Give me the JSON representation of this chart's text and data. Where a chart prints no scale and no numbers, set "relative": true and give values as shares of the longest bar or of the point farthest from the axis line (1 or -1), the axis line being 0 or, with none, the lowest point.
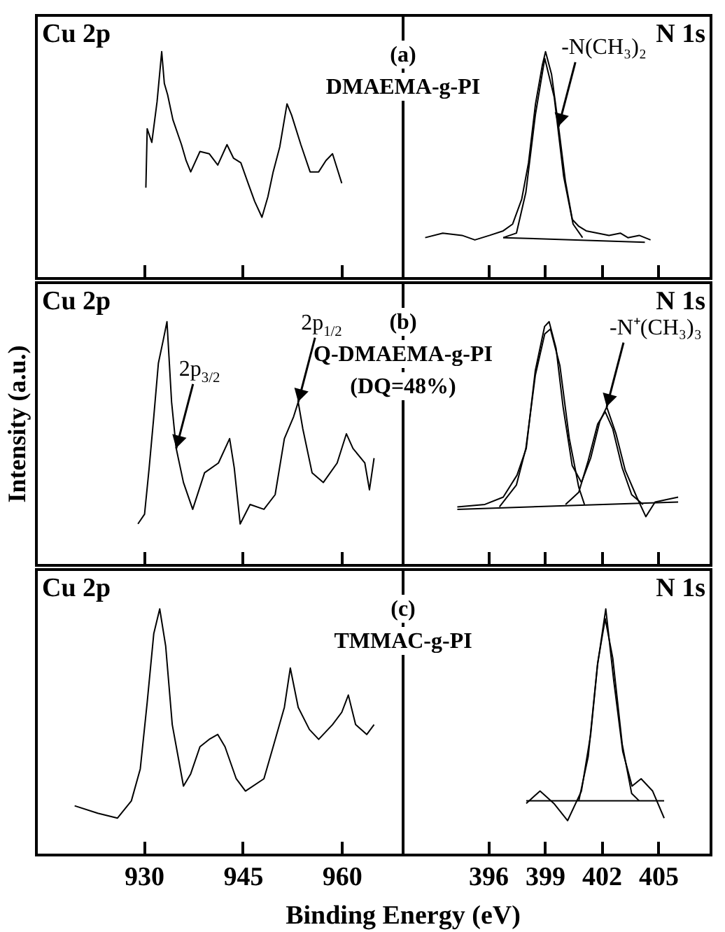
{
  "chart_data": [
    {
      "type": "line",
      "title": "Cu 2p",
      "relative": true,
      "xlim": [
        913.7,
        969.3
      ],
      "xticks": [
        930,
        945,
        960
      ],
      "tick_labels": false,
      "series": [
        {
          "color": "#000000",
          "x": [
            930.3,
            930.5,
            931.2,
            932.0,
            932.7,
            933.1,
            933.6,
            934.4,
            935.7,
            936.4,
            937.1,
            938.5,
            939.9,
            941.2,
            942.6,
            943.6,
            944.7,
            945.8,
            946.8,
            947.9,
            948.8,
            949.6,
            950.6,
            951.7,
            952.4,
            953.8,
            955.2,
            956.5,
            957.6,
            958.6,
            960.0
          ],
          "values": [
            0.4,
            0.66,
            0.6,
            0.78,
            1.0,
            0.86,
            0.81,
            0.7,
            0.59,
            0.52,
            0.47,
            0.56,
            0.55,
            0.5,
            0.59,
            0.53,
            0.51,
            0.42,
            0.34,
            0.27,
            0.36,
            0.47,
            0.58,
            0.77,
            0.72,
            0.59,
            0.47,
            0.47,
            0.52,
            0.55,
            0.42
          ]
        }
      ]
    },
    {
      "type": "line",
      "title": "N 1s",
      "relative": true,
      "xlim": [
        391.5,
        407.8
      ],
      "xticks": [
        396,
        399,
        402,
        405
      ],
      "tick_labels": false,
      "annotations": [
        "(a)",
        "DMAEMA-g-PI",
        {
          "text": "-N(CH₃)₂",
          "x": 399.73,
          "y": 0.67
        }
      ],
      "series": [
        {
          "color": "#000000",
          "x": [
            392.67,
            393.6,
            394.62,
            395.3,
            396.08,
            396.8,
            397.3,
            397.78,
            398.14,
            398.51,
            398.87,
            399.04,
            399.36,
            399.73,
            400.09,
            400.46,
            400.8,
            401.19,
            401.8,
            402.4,
            403.0,
            403.4,
            404.0,
            404.6
          ],
          "values": [
            0.18,
            0.2,
            0.19,
            0.17,
            0.19,
            0.21,
            0.24,
            0.35,
            0.51,
            0.77,
            0.94,
            1.0,
            0.9,
            0.67,
            0.43,
            0.26,
            0.23,
            0.21,
            0.2,
            0.19,
            0.2,
            0.18,
            0.19,
            0.17
          ]
        },
        {
          "color": "#000000",
          "x": [
            396.8,
            397.5,
            398.0,
            398.5,
            399.0,
            399.5,
            400.0,
            400.5,
            401.0
          ],
          "values": [
            0.18,
            0.2,
            0.38,
            0.72,
            0.97,
            0.8,
            0.45,
            0.24,
            0.18
          ]
        },
        {
          "color": "#000000",
          "x": [
            396.8,
            404.3
          ],
          "values": [
            0.18,
            0.16
          ]
        }
      ]
    },
    {
      "type": "line",
      "title": "Cu 2p",
      "relative": true,
      "ylabel": "Intensity (a.u.)",
      "xlim": [
        913.7,
        969.3
      ],
      "xticks": [
        930,
        945,
        960
      ],
      "tick_labels": false,
      "annotations": [
        {
          "text": "2p$_{3/2}$",
          "x": 934.9,
          "y": 0.48
        },
        {
          "text": "2p$_{1/2}$",
          "x": 953.4,
          "y": 0.67
        }
      ],
      "series": [
        {
          "color": "#000000",
          "x": [
            929.1,
            930.1,
            930.8,
            931.5,
            932.2,
            932.9,
            933.5,
            934.2,
            934.9,
            936.0,
            937.4,
            939.2,
            941.3,
            943.0,
            943.7,
            944.6,
            946.1,
            948.2,
            949.9,
            951.3,
            952.7,
            953.4,
            954.1,
            955.5,
            957.2,
            959.3,
            960.7,
            961.7,
            963.5,
            964.2,
            964.9
          ],
          "values": [
            0.17,
            0.21,
            0.4,
            0.61,
            0.83,
            0.92,
            1.0,
            0.67,
            0.48,
            0.34,
            0.23,
            0.38,
            0.42,
            0.52,
            0.4,
            0.17,
            0.25,
            0.23,
            0.29,
            0.52,
            0.61,
            0.67,
            0.56,
            0.38,
            0.34,
            0.42,
            0.54,
            0.48,
            0.42,
            0.31,
            0.44
          ]
        }
      ]
    },
    {
      "type": "line",
      "title": "N 1s",
      "relative": true,
      "xlim": [
        391.5,
        407.8
      ],
      "xticks": [
        396,
        399,
        402,
        405
      ],
      "tick_labels": false,
      "annotations": [
        "(b)",
        "Q-DMAEMA-g-PI",
        "(DQ=48%)",
        {
          "text": "-N⁺(CH₃)₃",
          "x": 402.28,
          "y": 0.65
        }
      ],
      "series": [
        {
          "color": "#000000",
          "x": [
            394.37,
            395.83,
            396.8,
            397.53,
            398.02,
            398.5,
            398.99,
            399.23,
            399.6,
            399.97,
            400.45,
            400.94,
            401.43,
            401.91,
            402.28,
            402.77,
            403.26,
            403.87,
            404.35,
            404.84,
            406.06
          ],
          "values": [
            0.24,
            0.25,
            0.28,
            0.37,
            0.48,
            0.8,
            0.98,
            1.0,
            0.89,
            0.65,
            0.41,
            0.34,
            0.44,
            0.59,
            0.65,
            0.54,
            0.39,
            0.28,
            0.2,
            0.26,
            0.28
          ]
        },
        {
          "color": "#000000",
          "x": [
            396.6,
            397.5,
            398.0,
            398.5,
            399.0,
            399.3,
            399.8,
            400.3,
            400.8,
            401.1
          ],
          "values": [
            0.24,
            0.33,
            0.48,
            0.78,
            0.95,
            0.97,
            0.82,
            0.52,
            0.32,
            0.25
          ]
        },
        {
          "color": "#000000",
          "x": [
            400.1,
            400.8,
            401.3,
            401.8,
            402.2,
            402.6,
            403.1,
            403.6,
            404.2
          ],
          "values": [
            0.25,
            0.3,
            0.43,
            0.58,
            0.63,
            0.56,
            0.4,
            0.29,
            0.25
          ]
        },
        {
          "color": "#000000",
          "x": [
            394.37,
            406.06
          ],
          "values": [
            0.23,
            0.26
          ]
        }
      ]
    },
    {
      "type": "line",
      "title": "Cu 2p",
      "relative": true,
      "xlabel": "Binding Energy (eV)",
      "xlim": [
        913.7,
        969.3
      ],
      "xticks": [
        930,
        945,
        960
      ],
      "tick_labels": "x",
      "series": [
        {
          "color": "#000000",
          "x": [
            919.5,
            923.0,
            926.0,
            928.1,
            929.45,
            930.5,
            931.5,
            932.4,
            933.3,
            934.3,
            936.0,
            937.1,
            938.5,
            939.9,
            941.2,
            942.3,
            944.0,
            945.4,
            948.2,
            949.6,
            951.3,
            952.2,
            953.4,
            955.1,
            956.5,
            958.6,
            960.0,
            961.0,
            962.1,
            963.8,
            964.9
          ],
          "values": [
            0.2,
            0.17,
            0.15,
            0.22,
            0.35,
            0.62,
            0.9,
            1.0,
            0.85,
            0.53,
            0.28,
            0.33,
            0.44,
            0.47,
            0.49,
            0.44,
            0.31,
            0.26,
            0.31,
            0.44,
            0.6,
            0.76,
            0.6,
            0.51,
            0.47,
            0.53,
            0.58,
            0.65,
            0.53,
            0.49,
            0.53
          ]
        }
      ]
    },
    {
      "type": "line",
      "title": "N 1s",
      "relative": true,
      "xlim": [
        391.5,
        407.8
      ],
      "xticks": [
        396,
        399,
        402,
        405
      ],
      "tick_labels": "x",
      "annotations": [
        "(c)",
        "TMMAC-g-PI"
      ],
      "series": [
        {
          "color": "#000000",
          "x": [
            398.02,
            398.75,
            399.48,
            400.21,
            400.94,
            401.43,
            401.79,
            402.23,
            402.65,
            403.13,
            403.62,
            404.1,
            404.71,
            405.32
          ],
          "values": [
            0.21,
            0.26,
            0.21,
            0.14,
            0.26,
            0.49,
            0.77,
            1.0,
            0.71,
            0.42,
            0.28,
            0.31,
            0.26,
            0.15
          ]
        },
        {
          "color": "#000000",
          "x": [
            400.8,
            401.3,
            401.8,
            402.2,
            402.6,
            403.1,
            403.6,
            404.0
          ],
          "values": [
            0.22,
            0.4,
            0.78,
            0.96,
            0.8,
            0.45,
            0.25,
            0.22
          ]
        },
        {
          "color": "#000000",
          "x": [
            398.02,
            405.32
          ],
          "values": [
            0.22,
            0.22
          ]
        }
      ]
    }
  ]
}
